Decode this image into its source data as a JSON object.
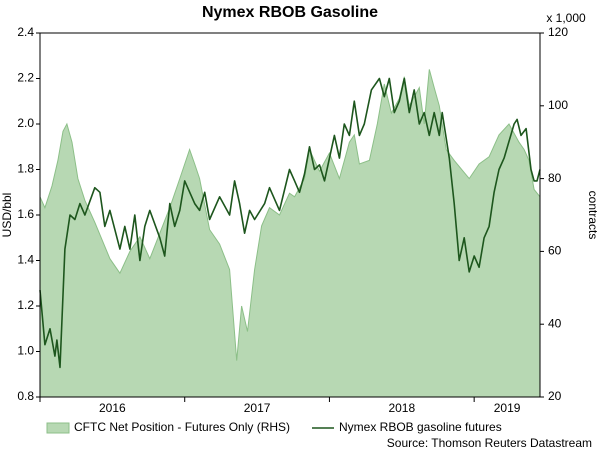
{
  "chart_data": {
    "type": "line",
    "title": "Nymex RBOB Gasoline",
    "ylabel": "USD/bbl",
    "y2label": "contracts",
    "y2unit": "x 1,000",
    "source": "Source: Thomson Reuters Datastream",
    "xlim": [
      2016,
      2019.455
    ],
    "xticks": [
      2016,
      2017,
      2018,
      2019
    ],
    "ylim": [
      0.8,
      2.4
    ],
    "yticks": [
      0.8,
      {
        "value": 1,
        "label": "1.0"
      },
      1.2,
      1.4,
      1.6,
      1.8,
      {
        "value": 2,
        "label": "2.0"
      },
      2.2,
      2.4
    ],
    "y2lim": [
      20,
      120
    ],
    "y2ticks": [
      20,
      40,
      60,
      80,
      100,
      120
    ],
    "series": [
      {
        "name": "CFTC Net Position - Futures Only (RHS)",
        "type": "area",
        "axis": "y2",
        "color": "#b7d8b3",
        "edge": "#8cbf88",
        "x": [
          2016,
          2016.034,
          2016.083,
          2016.124,
          2016.159,
          2016.186,
          2016.221,
          2016.262,
          2016.31,
          2016.379,
          2016.483,
          2016.552,
          2016.621,
          2016.69,
          2016.759,
          2016.828,
          2016.897,
          2016.966,
          2017.034,
          2017.069,
          2017.103,
          2017.172,
          2017.241,
          2017.31,
          2017.359,
          2017.393,
          2017.434,
          2017.483,
          2017.531,
          2017.586,
          2017.655,
          2017.724,
          2017.759,
          2017.828,
          2017.862,
          2017.931,
          2018,
          2018.069,
          2018.138,
          2018.172,
          2018.207,
          2018.276,
          2018.331,
          2018.379,
          2018.428,
          2018.483,
          2018.517,
          2018.552,
          2018.621,
          2018.655,
          2018.69,
          2018.724,
          2018.759,
          2018.807,
          2018.862,
          2018.966,
          2019.034,
          2019.103,
          2019.172,
          2019.241,
          2019.31,
          2019.345,
          2019.379,
          2019.414,
          2019.455
        ],
        "values": [
          75,
          72,
          78,
          85,
          93,
          95,
          90,
          80,
          74,
          68,
          58,
          54,
          60,
          64,
          58,
          65,
          72,
          80,
          88,
          84,
          80,
          66,
          62,
          55,
          30,
          45,
          38,
          55,
          67,
          72,
          70,
          76,
          75,
          80,
          88,
          82,
          87,
          80,
          90,
          92,
          84,
          85,
          95,
          106,
          98,
          102,
          108,
          100,
          105,
          95,
          110,
          105,
          100,
          88,
          85,
          80,
          84,
          86,
          92,
          95,
          90,
          88,
          85,
          77,
          75
        ]
      },
      {
        "name": "Nymex RBOB gasoline futures",
        "type": "line",
        "color": "#1d561d",
        "x": [
          2016,
          2016.034,
          2016.069,
          2016.103,
          2016.117,
          2016.138,
          2016.172,
          2016.207,
          2016.241,
          2016.276,
          2016.31,
          2016.379,
          2016.414,
          2016.448,
          2016.483,
          2016.552,
          2016.586,
          2016.621,
          2016.655,
          2016.69,
          2016.724,
          2016.759,
          2016.828,
          2016.862,
          2016.897,
          2016.931,
          2016.966,
          2017,
          2017.069,
          2017.103,
          2017.138,
          2017.172,
          2017.241,
          2017.31,
          2017.345,
          2017.379,
          2017.414,
          2017.448,
          2017.483,
          2017.552,
          2017.586,
          2017.655,
          2017.724,
          2017.759,
          2017.793,
          2017.828,
          2017.862,
          2017.897,
          2017.931,
          2017.966,
          2018.034,
          2018.069,
          2018.103,
          2018.138,
          2018.172,
          2018.207,
          2018.241,
          2018.29,
          2018.345,
          2018.379,
          2018.414,
          2018.448,
          2018.483,
          2018.517,
          2018.552,
          2018.586,
          2018.621,
          2018.655,
          2018.69,
          2018.724,
          2018.759,
          2018.779,
          2018.828,
          2018.862,
          2018.897,
          2018.931,
          2018.966,
          2019,
          2019.034,
          2019.069,
          2019.103,
          2019.138,
          2019.172,
          2019.207,
          2019.276,
          2019.297,
          2019.324,
          2019.359,
          2019.393,
          2019.414,
          2019.434,
          2019.455
        ],
        "values": [
          1.27,
          1.03,
          1.1,
          0.98,
          1.05,
          0.93,
          1.45,
          1.6,
          1.58,
          1.65,
          1.6,
          1.72,
          1.7,
          1.55,
          1.62,
          1.45,
          1.55,
          1.45,
          1.6,
          1.4,
          1.55,
          1.62,
          1.5,
          1.42,
          1.65,
          1.55,
          1.62,
          1.75,
          1.65,
          1.62,
          1.7,
          1.58,
          1.68,
          1.6,
          1.75,
          1.65,
          1.52,
          1.62,
          1.58,
          1.65,
          1.72,
          1.62,
          1.8,
          1.75,
          1.7,
          1.78,
          1.9,
          1.8,
          1.82,
          1.75,
          1.95,
          1.85,
          2.0,
          1.95,
          2.1,
          1.95,
          2.0,
          2.15,
          2.2,
          2.12,
          2.2,
          2.05,
          2.1,
          2.2,
          2.05,
          2.15,
          2.0,
          2.05,
          1.95,
          2.05,
          1.95,
          2.05,
          1.85,
          1.65,
          1.4,
          1.5,
          1.35,
          1.42,
          1.37,
          1.5,
          1.55,
          1.7,
          1.8,
          1.85,
          2.0,
          2.02,
          1.95,
          1.98,
          1.8,
          1.75,
          1.75,
          1.8
        ]
      }
    ]
  }
}
